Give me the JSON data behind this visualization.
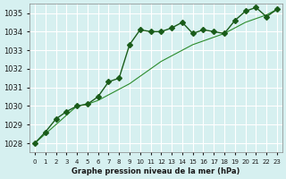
{
  "title": "Graphe pression niveau de la mer (hPa)",
  "bg_color": "#d6f0f0",
  "grid_color": "#ffffff",
  "line_color_main": "#1a5c1a",
  "line_color_smooth": "#2d8c2d",
  "x_values": [
    0,
    1,
    2,
    3,
    4,
    5,
    6,
    7,
    8,
    9,
    10,
    11,
    12,
    13,
    14,
    15,
    16,
    17,
    18,
    19,
    20,
    21,
    22,
    23
  ],
  "series1": [
    1028.0,
    1028.6,
    1029.3,
    1029.7,
    1030.0,
    1030.1,
    1030.5,
    1031.3,
    1031.5,
    1033.3,
    1034.1,
    1034.0,
    1034.0,
    1034.2,
    1034.5,
    1033.9,
    1034.1,
    1034.0,
    1033.9,
    1034.6,
    1035.1,
    1035.3,
    1034.8,
    1035.2
  ],
  "series2": [
    1028.0,
    1028.5,
    1029.0,
    1029.5,
    1030.0,
    1030.1,
    1030.3,
    1030.6,
    1030.9,
    1031.2,
    1031.6,
    1032.0,
    1032.4,
    1032.7,
    1033.0,
    1033.3,
    1033.5,
    1033.7,
    1033.9,
    1034.2,
    1034.5,
    1034.7,
    1034.9,
    1035.2
  ],
  "ylim": [
    1027.5,
    1035.5
  ],
  "yticks": [
    1028,
    1029,
    1030,
    1031,
    1032,
    1033,
    1034,
    1035
  ],
  "xlabel": "Graphe pression niveau de la mer (hPa)",
  "marker": "D",
  "markersize": 3
}
